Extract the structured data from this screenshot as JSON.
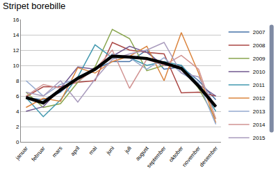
{
  "chart_data": {
    "type": "line",
    "title": "Stripet borebille",
    "categories": [
      "januar",
      "februar",
      "mars",
      "april",
      "mai",
      "juni",
      "juli",
      "august",
      "september",
      "oktober",
      "november",
      "desember"
    ],
    "series": [
      {
        "name": "2007",
        "color": "#4572A7",
        "values": [
          5.8,
          5.5,
          6.5,
          8.5,
          9.5,
          10.5,
          10.5,
          12,
          9.5,
          9.8,
          8,
          5.5
        ]
      },
      {
        "name": "2008",
        "color": "#AA4643",
        "values": [
          5.9,
          7.2,
          7.2,
          7.8,
          8,
          13,
          12,
          11.7,
          11.5,
          6.4,
          6.5,
          6
        ]
      },
      {
        "name": "2009",
        "color": "#89A54E",
        "values": [
          6.5,
          4.5,
          5,
          7.8,
          9.8,
          14.7,
          13.5,
          9.3,
          10,
          10,
          7,
          3
        ]
      },
      {
        "name": "2010",
        "color": "#71588F",
        "values": [
          4,
          4.6,
          7,
          9.8,
          9.5,
          11.2,
          12.5,
          11.7,
          10,
          10,
          7.5,
          6
        ]
      },
      {
        "name": "2011",
        "color": "#4198AF",
        "values": [
          5.8,
          3.3,
          5.5,
          8.5,
          12.7,
          11,
          11,
          10,
          10.5,
          10,
          7.5,
          4
        ]
      },
      {
        "name": "2012",
        "color": "#DB843D",
        "values": [
          4.5,
          5.7,
          5.3,
          9.7,
          9,
          10.5,
          11.2,
          12.5,
          8,
          14.3,
          9,
          2.5
        ]
      },
      {
        "name": "2013",
        "color": "#93A9CF",
        "values": [
          8,
          6,
          7.5,
          8.3,
          9.5,
          11.5,
          11,
          9.5,
          11,
          9,
          7.7,
          2.3
        ]
      },
      {
        "name": "2014",
        "color": "#D19392",
        "values": [
          6,
          7.5,
          7,
          7.9,
          9.5,
          12,
          7,
          10.8,
          10,
          11.3,
          9.5,
          3
        ]
      },
      {
        "name": "2015",
        "color": "#A99BBD",
        "values": [
          6.5,
          6,
          8,
          5.2,
          8.2,
          10.8,
          11.5,
          12,
          13,
          9,
          8.5,
          4.5
        ]
      },
      {
        "color": "#000000",
        "line_style": "thick",
        "values": [
          5.8,
          5.1,
          6.8,
          8.3,
          9.5,
          11.2,
          11.1,
          10.9,
          10.3,
          9.6,
          7.3,
          4.6
        ]
      }
    ],
    "ylim": [
      0,
      16
    ],
    "yticks": [
      0,
      2,
      4,
      6,
      8,
      10,
      12,
      14,
      16
    ],
    "grid": true,
    "legend": "right"
  }
}
